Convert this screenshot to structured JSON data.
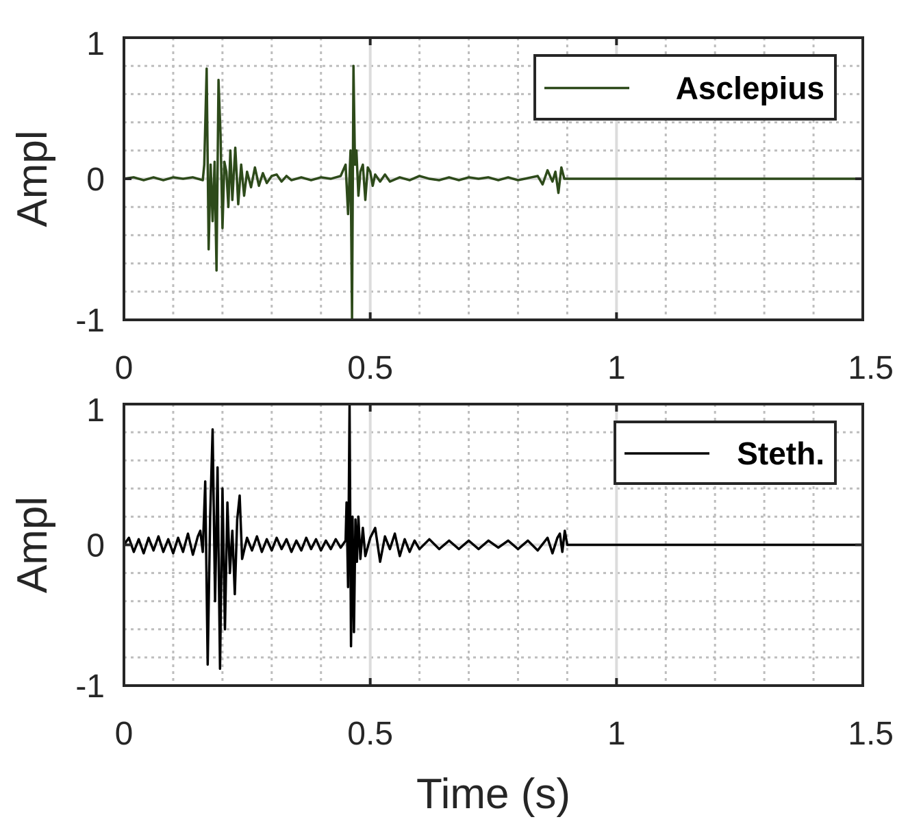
{
  "chart_data": [
    {
      "type": "line",
      "ylabel": "Ampl",
      "xlabel": "",
      "xlim": [
        0,
        1.5
      ],
      "ylim": [
        -1,
        1
      ],
      "xticks": [
        0,
        0.5,
        1,
        1.5
      ],
      "xtick_labels": [
        "0",
        "0.5",
        "1",
        "1.5"
      ],
      "yticks": [
        -1,
        0,
        1
      ],
      "ytick_labels": [
        "-1",
        "0",
        "1"
      ],
      "grid": true,
      "minor_grid": true,
      "legend_position": "top-right",
      "series": [
        {
          "name": "Asclepius",
          "color": "#2d4a1a",
          "x": [
            0,
            0.02,
            0.04,
            0.06,
            0.08,
            0.1,
            0.12,
            0.14,
            0.16,
            0.163,
            0.168,
            0.172,
            0.176,
            0.18,
            0.184,
            0.188,
            0.192,
            0.196,
            0.2,
            0.204,
            0.208,
            0.212,
            0.216,
            0.22,
            0.226,
            0.232,
            0.238,
            0.244,
            0.25,
            0.258,
            0.266,
            0.274,
            0.282,
            0.29,
            0.3,
            0.31,
            0.32,
            0.33,
            0.34,
            0.36,
            0.38,
            0.4,
            0.42,
            0.44,
            0.45,
            0.455,
            0.46,
            0.463,
            0.466,
            0.469,
            0.472,
            0.476,
            0.48,
            0.485,
            0.49,
            0.495,
            0.5,
            0.505,
            0.51,
            0.52,
            0.53,
            0.54,
            0.56,
            0.58,
            0.6,
            0.62,
            0.64,
            0.66,
            0.68,
            0.7,
            0.72,
            0.74,
            0.76,
            0.78,
            0.8,
            0.84,
            0.85,
            0.86,
            0.87,
            0.876,
            0.882,
            0.888,
            0.894,
            0.9,
            1.0,
            1.1,
            1.2,
            1.3,
            1.4,
            1.5
          ],
          "y": [
            0.0,
            0.01,
            -0.01,
            0.01,
            -0.01,
            0.01,
            0.0,
            0.01,
            -0.01,
            0.1,
            0.78,
            -0.5,
            0.1,
            -0.3,
            0.12,
            -0.65,
            0.7,
            0.32,
            -0.35,
            0.12,
            0.05,
            -0.2,
            0.2,
            -0.15,
            0.22,
            -0.18,
            0.1,
            -0.12,
            0.05,
            -0.06,
            0.08,
            -0.05,
            0.04,
            -0.03,
            0.02,
            0.03,
            -0.02,
            0.02,
            -0.01,
            0.01,
            -0.01,
            0.01,
            0.0,
            0.02,
            0.1,
            -0.25,
            0.2,
            -1.0,
            0.8,
            0.1,
            0.2,
            -0.12,
            0.05,
            0.1,
            -0.15,
            0.08,
            0.05,
            -0.05,
            0.03,
            -0.02,
            0.03,
            -0.02,
            0.01,
            -0.01,
            0.02,
            0.0,
            -0.01,
            0.01,
            -0.01,
            0.01,
            0.0,
            0.01,
            -0.01,
            0.01,
            -0.01,
            0.02,
            -0.04,
            0.06,
            -0.02,
            0.05,
            -0.1,
            0.08,
            0.0,
            0.0,
            0.0,
            0.0,
            0.0,
            0.0,
            0.0,
            0.0
          ]
        }
      ]
    },
    {
      "type": "line",
      "ylabel": "Ampl",
      "xlabel": "Time (s)",
      "xlim": [
        0,
        1.5
      ],
      "ylim": [
        -1,
        1
      ],
      "xticks": [
        0,
        0.5,
        1,
        1.5
      ],
      "xtick_labels": [
        "0",
        "0.5",
        "1",
        "1.5"
      ],
      "yticks": [
        -1,
        0,
        1
      ],
      "ytick_labels": [
        "-1",
        "0",
        "1"
      ],
      "grid": true,
      "minor_grid": true,
      "legend_position": "top-right",
      "series": [
        {
          "name": "Steth.",
          "color": "#000000",
          "x": [
            0,
            0.01,
            0.02,
            0.03,
            0.04,
            0.05,
            0.06,
            0.07,
            0.08,
            0.09,
            0.1,
            0.11,
            0.12,
            0.13,
            0.14,
            0.15,
            0.155,
            0.16,
            0.165,
            0.17,
            0.175,
            0.18,
            0.185,
            0.19,
            0.195,
            0.2,
            0.205,
            0.21,
            0.215,
            0.22,
            0.225,
            0.23,
            0.235,
            0.24,
            0.25,
            0.26,
            0.27,
            0.28,
            0.29,
            0.3,
            0.31,
            0.32,
            0.33,
            0.34,
            0.35,
            0.36,
            0.37,
            0.38,
            0.39,
            0.4,
            0.41,
            0.42,
            0.43,
            0.44,
            0.45,
            0.452,
            0.455,
            0.458,
            0.461,
            0.464,
            0.467,
            0.47,
            0.473,
            0.476,
            0.48,
            0.485,
            0.49,
            0.5,
            0.51,
            0.52,
            0.53,
            0.54,
            0.55,
            0.56,
            0.57,
            0.58,
            0.59,
            0.6,
            0.62,
            0.64,
            0.66,
            0.68,
            0.7,
            0.72,
            0.74,
            0.76,
            0.78,
            0.8,
            0.82,
            0.84,
            0.86,
            0.87,
            0.88,
            0.885,
            0.89,
            0.895,
            0.9,
            1.0,
            1.1,
            1.2,
            1.3,
            1.4,
            1.5
          ],
          "y": [
            0.0,
            0.05,
            -0.05,
            0.04,
            -0.06,
            0.05,
            -0.04,
            0.06,
            -0.05,
            0.04,
            -0.06,
            0.05,
            -0.05,
            0.08,
            -0.07,
            0.06,
            0.1,
            -0.05,
            0.45,
            -0.85,
            0.2,
            0.82,
            -0.4,
            0.55,
            -0.88,
            0.4,
            -0.6,
            0.3,
            -0.2,
            0.1,
            -0.35,
            0.18,
            0.35,
            -0.1,
            0.05,
            -0.04,
            0.06,
            -0.05,
            0.04,
            -0.04,
            0.05,
            -0.03,
            0.04,
            -0.05,
            0.03,
            -0.04,
            0.05,
            -0.03,
            0.04,
            -0.04,
            0.03,
            -0.03,
            0.04,
            -0.02,
            0.03,
            0.3,
            -0.3,
            1.0,
            -0.72,
            0.2,
            -0.62,
            0.18,
            -0.12,
            0.2,
            -0.1,
            0.12,
            -0.08,
            0.05,
            0.12,
            -0.12,
            0.06,
            -0.03,
            0.08,
            -0.08,
            0.04,
            -0.05,
            0.03,
            -0.03,
            0.04,
            -0.03,
            0.03,
            -0.03,
            0.03,
            -0.03,
            0.03,
            -0.02,
            0.03,
            -0.03,
            0.03,
            -0.04,
            0.05,
            -0.06,
            0.05,
            0.08,
            -0.05,
            0.1,
            0.0,
            0.0,
            0.0,
            0.0,
            0.0,
            0.0,
            0.0
          ]
        }
      ]
    }
  ]
}
